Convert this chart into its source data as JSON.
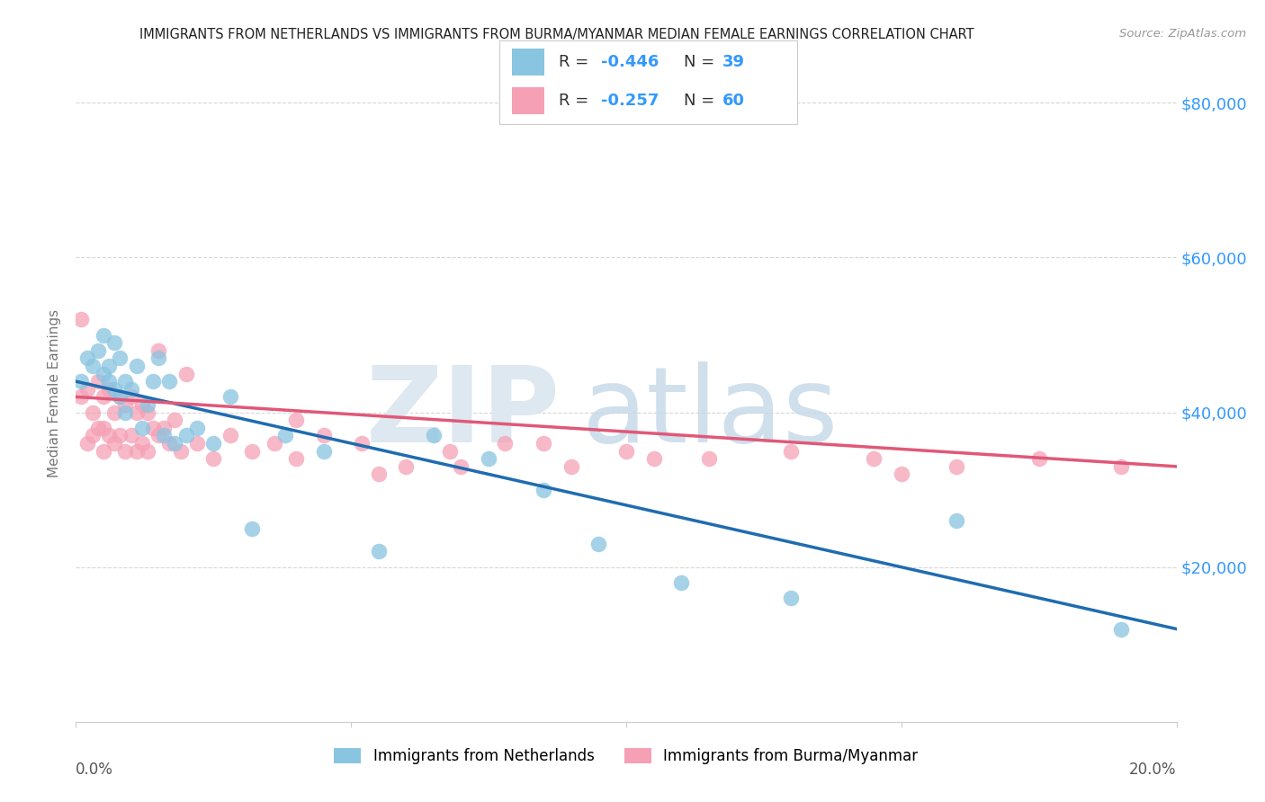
{
  "title": "IMMIGRANTS FROM NETHERLANDS VS IMMIGRANTS FROM BURMA/MYANMAR MEDIAN FEMALE EARNINGS CORRELATION CHART",
  "source": "Source: ZipAtlas.com",
  "ylabel": "Median Female Earnings",
  "yticks": [
    0,
    20000,
    40000,
    60000,
    80000
  ],
  "ytick_labels": [
    "",
    "$20,000",
    "$40,000",
    "$60,000",
    "$80,000"
  ],
  "xlim": [
    0.0,
    0.2
  ],
  "ylim": [
    0,
    85000
  ],
  "legend_r1": "-0.446",
  "legend_n1": "39",
  "legend_r2": "-0.257",
  "legend_n2": "60",
  "color_netherlands": "#89c4e1",
  "color_burma": "#f5a0b5",
  "color_netherlands_line": "#1f6cb0",
  "color_burma_line": "#e05878",
  "color_blue_text": "#3399ff",
  "color_axis_r_label": "#5599cc",
  "netherlands_x": [
    0.001,
    0.002,
    0.003,
    0.004,
    0.005,
    0.005,
    0.006,
    0.006,
    0.007,
    0.007,
    0.008,
    0.008,
    0.009,
    0.009,
    0.01,
    0.011,
    0.012,
    0.013,
    0.014,
    0.015,
    0.016,
    0.017,
    0.018,
    0.02,
    0.022,
    0.025,
    0.028,
    0.032,
    0.038,
    0.045,
    0.055,
    0.065,
    0.075,
    0.085,
    0.095,
    0.11,
    0.13,
    0.16,
    0.19
  ],
  "netherlands_y": [
    44000,
    47000,
    46000,
    48000,
    45000,
    50000,
    46000,
    44000,
    49000,
    43000,
    47000,
    42000,
    44000,
    40000,
    43000,
    46000,
    38000,
    41000,
    44000,
    47000,
    37000,
    44000,
    36000,
    37000,
    38000,
    36000,
    42000,
    25000,
    37000,
    35000,
    22000,
    37000,
    34000,
    30000,
    23000,
    18000,
    16000,
    26000,
    12000
  ],
  "burma_x": [
    0.001,
    0.001,
    0.002,
    0.002,
    0.003,
    0.003,
    0.004,
    0.004,
    0.005,
    0.005,
    0.005,
    0.006,
    0.006,
    0.007,
    0.007,
    0.008,
    0.008,
    0.009,
    0.009,
    0.01,
    0.01,
    0.011,
    0.011,
    0.012,
    0.012,
    0.013,
    0.013,
    0.014,
    0.015,
    0.015,
    0.016,
    0.017,
    0.018,
    0.019,
    0.02,
    0.022,
    0.025,
    0.028,
    0.032,
    0.036,
    0.04,
    0.045,
    0.052,
    0.06,
    0.068,
    0.078,
    0.09,
    0.1,
    0.115,
    0.13,
    0.145,
    0.16,
    0.175,
    0.19,
    0.04,
    0.055,
    0.07,
    0.085,
    0.105,
    0.15
  ],
  "burma_y": [
    52000,
    42000,
    43000,
    36000,
    40000,
    37000,
    44000,
    38000,
    42000,
    38000,
    35000,
    43000,
    37000,
    40000,
    36000,
    42000,
    37000,
    41000,
    35000,
    42000,
    37000,
    40000,
    35000,
    41000,
    36000,
    40000,
    35000,
    38000,
    48000,
    37000,
    38000,
    36000,
    39000,
    35000,
    45000,
    36000,
    34000,
    37000,
    35000,
    36000,
    34000,
    37000,
    36000,
    33000,
    35000,
    36000,
    33000,
    35000,
    34000,
    35000,
    34000,
    33000,
    34000,
    33000,
    39000,
    32000,
    33000,
    36000,
    34000,
    32000
  ]
}
